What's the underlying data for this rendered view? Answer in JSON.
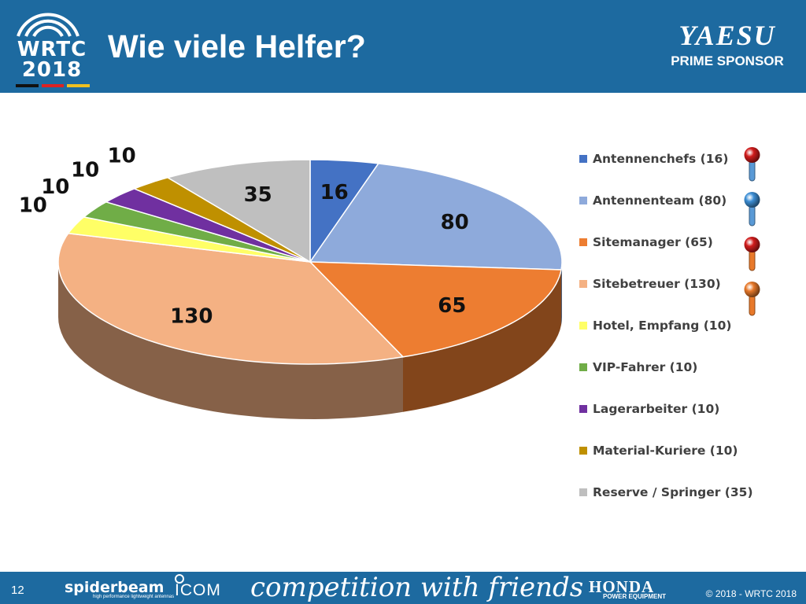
{
  "header": {
    "logo_line1": "WRTC",
    "logo_line2": "2018",
    "title": "Wie viele Helfer?",
    "sponsor_name": "YAESU",
    "sponsor_tag": "PRIME SPONSOR"
  },
  "colors": {
    "header_bg": "#1d6aa0",
    "pin_red": "#d11c1c",
    "pin_blue": "#3d8fd6",
    "pin_orange": "#e8792a",
    "stem_blue": "#5a9ad6",
    "stem_orange": "#e8792a"
  },
  "chart_data": {
    "type": "pie",
    "title": "",
    "start_angle_deg": 90,
    "direction": "clockwise",
    "slices": [
      {
        "label": "Antennenchefs (16)",
        "value": 16,
        "data_label": "16",
        "color": "#4472c4"
      },
      {
        "label": "Antennenteam (80)",
        "value": 80,
        "data_label": "80",
        "color": "#8eaadb"
      },
      {
        "label": "Sitemanager (65)",
        "value": 65,
        "data_label": "65",
        "color": "#ed7d31"
      },
      {
        "label": "Sitebetreuer (130)",
        "value": 130,
        "data_label": "130",
        "color": "#f4b183"
      },
      {
        "label": "Hotel, Empfang (10)",
        "value": 10,
        "data_label": "10",
        "color": "#ffff66"
      },
      {
        "label": "VIP-Fahrer (10)",
        "value": 10,
        "data_label": "10",
        "color": "#70ad47"
      },
      {
        "label": "Lagerarbeiter (10)",
        "value": 10,
        "data_label": "10",
        "color": "#7030a0"
      },
      {
        "label": "Material-Kuriere (10)",
        "value": 10,
        "data_label": "10",
        "color": "#bf9000"
      },
      {
        "label": "Reserve / Springer (35)",
        "value": 35,
        "data_label": "35",
        "color": "#bfbfbf"
      }
    ],
    "legend_position": "right"
  },
  "pins": [
    {
      "name": "red-pin-icon",
      "head": "pin_red",
      "stem": "stem_blue"
    },
    {
      "name": "blue-pin-icon",
      "head": "pin_blue",
      "stem": "stem_blue"
    },
    {
      "name": "red-pin-icon",
      "head": "pin_red",
      "stem": "stem_orange"
    },
    {
      "name": "orange-pin-icon",
      "head": "pin_orange",
      "stem": "stem_orange"
    }
  ],
  "footer": {
    "page_number": "12",
    "sponsor1": "spiderbeam",
    "sponsor1_sub": "high performance lightweight antennas",
    "sponsor2": "ICOM",
    "tagline": "competition with friends",
    "sponsor3": "HONDA",
    "sponsor3_sub": "POWER EQUIPMENT",
    "copyright": "© 2018 - WRTC 2018"
  }
}
